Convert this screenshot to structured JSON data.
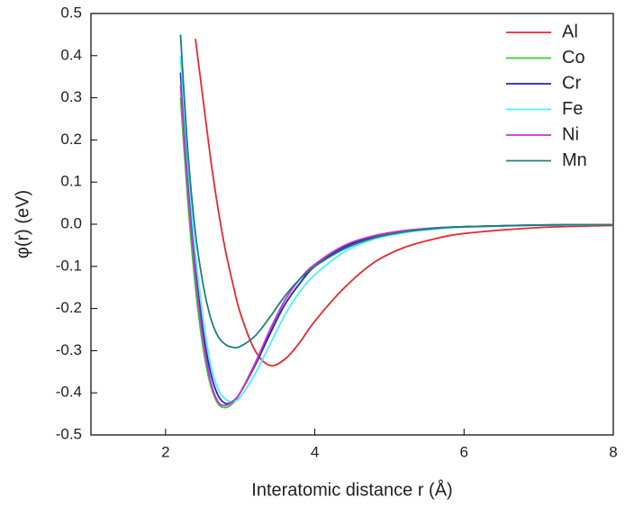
{
  "chart_data": {
    "type": "line",
    "xlabel": "Interatomic distance r (Å)",
    "ylabel": "φ(r) (eV)",
    "x": [
      2.2,
      2.3,
      2.4,
      2.5,
      2.6,
      2.7,
      2.8,
      2.9,
      3.0,
      3.2,
      3.4,
      3.6,
      3.8,
      4.0,
      4.4,
      4.8,
      5.2,
      5.6,
      6,
      7,
      8
    ],
    "series": [
      {
        "name": "Al",
        "color": "#e8282e",
        "values": [
          null,
          null,
          0.44,
          0.3,
          0.16,
          0.04,
          -0.06,
          -0.14,
          -0.21,
          -0.3,
          -0.335,
          -0.32,
          -0.28,
          -0.23,
          -0.15,
          -0.09,
          -0.055,
          -0.035,
          -0.022,
          -0.008,
          -0.003
        ]
      },
      {
        "name": "Co",
        "color": "#33cc33",
        "values": [
          0.3,
          0.05,
          -0.15,
          -0.29,
          -0.38,
          -0.425,
          -0.435,
          -0.425,
          -0.4,
          -0.33,
          -0.255,
          -0.19,
          -0.14,
          -0.1,
          -0.053,
          -0.028,
          -0.016,
          -0.009,
          -0.006,
          -0.002,
          -0.001
        ]
      },
      {
        "name": "Cr",
        "color": "#2323cc",
        "values": [
          0.36,
          0.1,
          -0.1,
          -0.25,
          -0.35,
          -0.405,
          -0.425,
          -0.42,
          -0.4,
          -0.335,
          -0.26,
          -0.19,
          -0.14,
          -0.1,
          -0.054,
          -0.029,
          -0.016,
          -0.009,
          -0.006,
          -0.002,
          -0.001
        ]
      },
      {
        "name": "Fe",
        "color": "#4ff0f0",
        "values": [
          0.4,
          0.14,
          -0.07,
          -0.22,
          -0.33,
          -0.39,
          -0.415,
          -0.42,
          -0.41,
          -0.355,
          -0.285,
          -0.215,
          -0.16,
          -0.12,
          -0.065,
          -0.035,
          -0.02,
          -0.012,
          -0.007,
          -0.003,
          -0.001
        ]
      },
      {
        "name": "Ni",
        "color": "#cc33cc",
        "values": [
          0.33,
          0.08,
          -0.12,
          -0.27,
          -0.37,
          -0.42,
          -0.43,
          -0.42,
          -0.4,
          -0.33,
          -0.25,
          -0.18,
          -0.13,
          -0.095,
          -0.05,
          -0.027,
          -0.015,
          -0.009,
          -0.006,
          -0.002,
          -0.001
        ]
      },
      {
        "name": "Mn",
        "color": "#1a8080",
        "values": [
          0.45,
          0.17,
          -0.02,
          -0.14,
          -0.22,
          -0.265,
          -0.285,
          -0.292,
          -0.29,
          -0.265,
          -0.22,
          -0.17,
          -0.13,
          -0.1,
          -0.058,
          -0.032,
          -0.018,
          -0.01,
          -0.006,
          -0.002,
          -0.001
        ]
      }
    ],
    "xlim": [
      1,
      8
    ],
    "xticks": [
      2,
      4,
      6,
      8
    ],
    "ylim": [
      -0.5,
      0.5
    ],
    "yticks": [
      -0.5,
      -0.4,
      -0.3,
      -0.2,
      -0.1,
      {
        "value": 0,
        "label": "0.0"
      },
      0.1,
      0.2,
      0.3,
      0.4,
      0.5
    ],
    "legend": "top-right"
  }
}
